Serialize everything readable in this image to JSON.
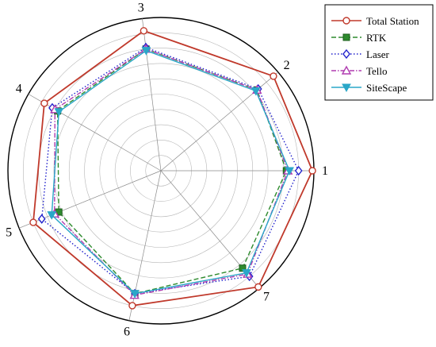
{
  "chart_data": {
    "type": "radar",
    "categories": [
      "1",
      "2",
      "3",
      "4",
      "5",
      "6",
      "7"
    ],
    "rlim": [
      0,
      1
    ],
    "rings": 10,
    "grid": true,
    "legend_position": "top-right",
    "series": [
      {
        "name": "Total Station",
        "color": "#c0392b",
        "line": "solid",
        "marker": "circle",
        "values": [
          0.99,
          0.96,
          0.92,
          0.88,
          0.9,
          0.9,
          0.99
        ]
      },
      {
        "name": "RTK",
        "color": "#2e8b2e",
        "line": "dashed",
        "marker": "square",
        "values": [
          0.82,
          0.82,
          0.8,
          0.78,
          0.72,
          0.82,
          0.83
        ]
      },
      {
        "name": "Laser",
        "color": "#2222cc",
        "line": "dotted",
        "marker": "diamond",
        "values": [
          0.9,
          0.83,
          0.81,
          0.82,
          0.84,
          0.82,
          0.9
        ]
      },
      {
        "name": "Tello",
        "color": "#b03cb0",
        "line": "dashdot",
        "marker": "triangle",
        "values": [
          0.83,
          0.82,
          0.8,
          0.8,
          0.75,
          0.83,
          0.88
        ]
      },
      {
        "name": "SiteScape",
        "color": "#2aa7c8",
        "line": "solid",
        "marker": "triangle-down",
        "values": [
          0.84,
          0.81,
          0.79,
          0.77,
          0.77,
          0.82,
          0.87
        ]
      }
    ]
  }
}
